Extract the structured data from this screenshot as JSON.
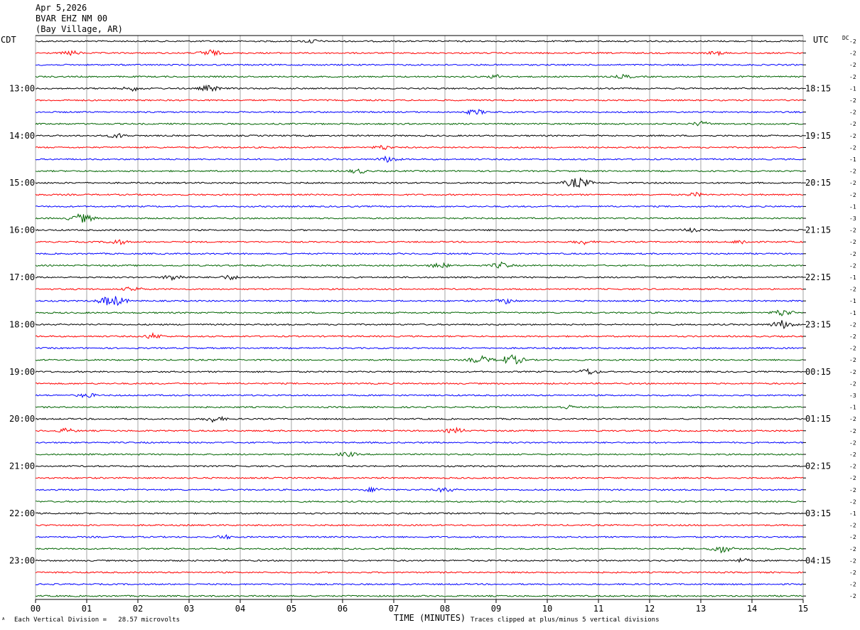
{
  "header": {
    "date": "Apr 5,2026",
    "station": "BVAR EHZ NM 00",
    "location": "(Bay Village, AR)"
  },
  "axes": {
    "left_zone": "CDT",
    "right_zone": "UTC",
    "dc_label": "DC",
    "xlabel": "TIME (MINUTES)"
  },
  "footer": {
    "left_mark": "ᴬ",
    "division_note": "Each Vertical Division =   28.57 microvolts",
    "clip_note": "Traces clipped at plus/minus 5 vertical divisions"
  },
  "colors": {
    "trace_cycle": [
      "#000000",
      "#ff0000",
      "#0000ff",
      "#006400"
    ],
    "grid": "#808080"
  },
  "chart_data": {
    "type": "line",
    "title": "",
    "x_range_minutes": [
      0,
      15
    ],
    "x_ticks": [
      "00",
      "01",
      "02",
      "03",
      "04",
      "05",
      "06",
      "07",
      "08",
      "09",
      "10",
      "11",
      "12",
      "13",
      "14",
      "15"
    ],
    "left_hour_labels": [
      "13:00",
      "14:00",
      "15:00",
      "16:00",
      "17:00",
      "18:00",
      "19:00",
      "20:00",
      "21:00",
      "22:00",
      "23:00"
    ],
    "right_hour_labels": [
      "18:15",
      "19:15",
      "20:15",
      "21:15",
      "22:15",
      "23:15",
      "00:15",
      "01:15",
      "02:15",
      "03:15",
      "04:15"
    ],
    "trace_count": 48,
    "first_labeled_trace": 4,
    "traces_per_hour": 4,
    "dc_offsets": [
      -2,
      -2,
      -2,
      -2,
      -1,
      -2,
      -2,
      -2,
      -2,
      -2,
      -1,
      -2,
      -2,
      -2,
      -1,
      -3,
      -2,
      -2,
      -2,
      -2,
      -1,
      -2,
      -1,
      -1,
      -2,
      -2,
      -2,
      -2,
      -2,
      -2,
      -3,
      -1,
      -2,
      -2,
      -2,
      -2,
      -2,
      -2,
      -2,
      -2,
      -1,
      -2,
      -2,
      -2,
      -2,
      -2,
      -2,
      -2
    ],
    "events": [
      {
        "trace": 0,
        "minute": 5.4,
        "amp": 0.5
      },
      {
        "trace": 1,
        "minute": 0.7,
        "amp": 0.6
      },
      {
        "trace": 1,
        "minute": 3.4,
        "amp": 0.9
      },
      {
        "trace": 1,
        "minute": 13.3,
        "amp": 0.5
      },
      {
        "trace": 3,
        "minute": 9.0,
        "amp": 0.5
      },
      {
        "trace": 3,
        "minute": 11.5,
        "amp": 0.5
      },
      {
        "trace": 4,
        "minute": 1.9,
        "amp": 0.6
      },
      {
        "trace": 4,
        "minute": 3.4,
        "amp": 0.8
      },
      {
        "trace": 6,
        "minute": 8.6,
        "amp": 0.7
      },
      {
        "trace": 7,
        "minute": 13.0,
        "amp": 0.6
      },
      {
        "trace": 8,
        "minute": 1.6,
        "amp": 0.6
      },
      {
        "trace": 9,
        "minute": 6.8,
        "amp": 0.6
      },
      {
        "trace": 10,
        "minute": 6.9,
        "amp": 0.8
      },
      {
        "trace": 11,
        "minute": 6.3,
        "amp": 0.6
      },
      {
        "trace": 12,
        "minute": 10.6,
        "amp": 1.4
      },
      {
        "trace": 13,
        "minute": 12.9,
        "amp": 0.5
      },
      {
        "trace": 15,
        "minute": 0.9,
        "amp": 1.2
      },
      {
        "trace": 16,
        "minute": 12.8,
        "amp": 0.5
      },
      {
        "trace": 17,
        "minute": 1.6,
        "amp": 0.7
      },
      {
        "trace": 17,
        "minute": 10.7,
        "amp": 0.6
      },
      {
        "trace": 17,
        "minute": 13.8,
        "amp": 0.6
      },
      {
        "trace": 19,
        "minute": 7.9,
        "amp": 0.7
      },
      {
        "trace": 19,
        "minute": 9.1,
        "amp": 0.8
      },
      {
        "trace": 20,
        "minute": 2.7,
        "amp": 0.8
      },
      {
        "trace": 20,
        "minute": 3.8,
        "amp": 0.6
      },
      {
        "trace": 21,
        "minute": 1.9,
        "amp": 0.6
      },
      {
        "trace": 22,
        "minute": 1.5,
        "amp": 1.5
      },
      {
        "trace": 22,
        "minute": 9.2,
        "amp": 0.7
      },
      {
        "trace": 23,
        "minute": 14.6,
        "amp": 0.9
      },
      {
        "trace": 24,
        "minute": 14.6,
        "amp": 1.1
      },
      {
        "trace": 25,
        "minute": 2.3,
        "amp": 0.7
      },
      {
        "trace": 27,
        "minute": 8.7,
        "amp": 1.0
      },
      {
        "trace": 27,
        "minute": 9.3,
        "amp": 1.3
      },
      {
        "trace": 28,
        "minute": 10.8,
        "amp": 0.8
      },
      {
        "trace": 30,
        "minute": 1.0,
        "amp": 0.6
      },
      {
        "trace": 31,
        "minute": 10.4,
        "amp": 0.5
      },
      {
        "trace": 32,
        "minute": 3.5,
        "amp": 0.8
      },
      {
        "trace": 33,
        "minute": 0.6,
        "amp": 0.6
      },
      {
        "trace": 33,
        "minute": 8.2,
        "amp": 0.7
      },
      {
        "trace": 35,
        "minute": 6.1,
        "amp": 0.6
      },
      {
        "trace": 38,
        "minute": 6.6,
        "amp": 0.6
      },
      {
        "trace": 38,
        "minute": 8.0,
        "amp": 0.6
      },
      {
        "trace": 42,
        "minute": 3.7,
        "amp": 0.5
      },
      {
        "trace": 43,
        "minute": 13.4,
        "amp": 1.0
      },
      {
        "trace": 44,
        "minute": 13.8,
        "amp": 0.5
      }
    ]
  }
}
